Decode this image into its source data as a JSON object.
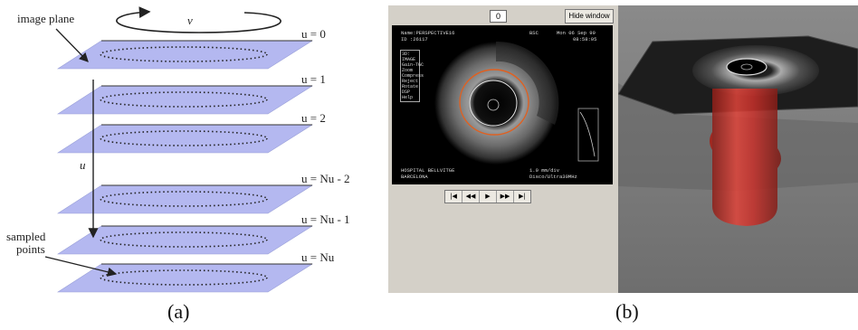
{
  "figure_a": {
    "labels": {
      "image_plane": "image plane",
      "v": "v",
      "u": "u",
      "sampled_points": "sampled points",
      "planes": [
        "u = 0",
        "u = 1",
        "u = 2",
        "u = Nu - 2",
        "u = Nu - 1",
        "u = Nu"
      ]
    },
    "caption": "(a)"
  },
  "figure_b": {
    "frame_value": "0",
    "hide_window_label": "Hide window >>",
    "ivus": {
      "name_line": "Name:PERSPECTIVE16",
      "id_line": "ID :26117",
      "bsc": "BSC",
      "date": "Mon 06 Sep 99",
      "time": "08:58:05",
      "menu": [
        "3D:",
        "IMAGE",
        "Gain-TGC",
        "Zoom",
        "Compress",
        "Reject",
        "Rotate",
        "DSP",
        "Help"
      ],
      "hospital": "HOSPITAL BELLVITGE",
      "city": "BARCELONA",
      "scale": "1.0 mm/div",
      "probe": "Disco/Ultra30MHz"
    },
    "transport_buttons": [
      "|◀",
      "◀◀",
      "▶",
      "▶▶",
      "▶|"
    ],
    "caption": "(b)",
    "colors": {
      "vessel": "#c8302a",
      "panel_bg": "#d4d0c8",
      "plane": "#b4b8f0"
    }
  }
}
